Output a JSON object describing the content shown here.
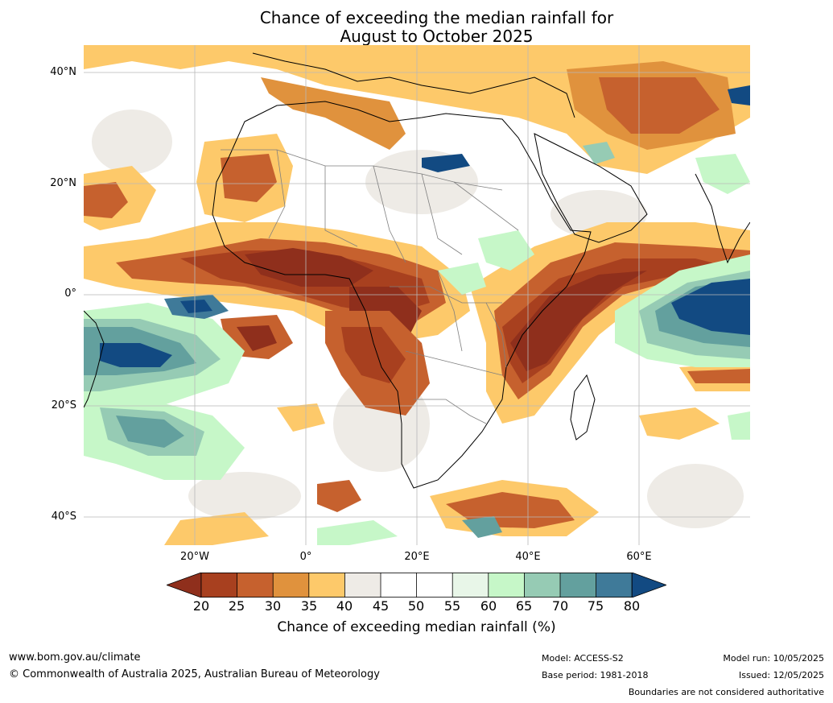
{
  "title": {
    "line1": "Chance of exceeding the median rainfall for",
    "line2": "August to October 2025"
  },
  "map": {
    "lat_labels": [
      "40°N",
      "20°N",
      "0°",
      "20°S",
      "40°S"
    ],
    "lon_labels": [
      "20°W",
      "0°",
      "20°E",
      "40°E",
      "60°E"
    ],
    "legend_colors": {
      "below_20": "#8f2f1c",
      "20_25": "#a8401f",
      "25_30": "#c6612e",
      "30_35": "#e0923d",
      "35_40": "#fdc96a",
      "40_45": "#eeebe6",
      "45_55": "#ffffff",
      "55_60": "#e8f6e8",
      "60_65": "#c6f7c8",
      "65_70": "#96cbb4",
      "70_75": "#63a09e",
      "75_80": "#3f7a99",
      "above_80": "#124a82"
    }
  },
  "colorbar": {
    "ticks": [
      "20",
      "25",
      "30",
      "35",
      "40",
      "45",
      "50",
      "55",
      "60",
      "65",
      "70",
      "75",
      "80"
    ],
    "label": "Chance of exceeding median rainfall (%)"
  },
  "footer": {
    "website": "www.bom.gov.au/climate",
    "copyright": "© Commonwealth of Australia 2025, Australian Bureau of Meteorology",
    "model": "Model: ACCESS-S2",
    "base_period": "Base period: 1981-2018",
    "model_run": "Model run: 10/05/2025",
    "issued": "Issued: 12/05/2025",
    "disclaimer": "Boundaries are not considered authoritative"
  }
}
